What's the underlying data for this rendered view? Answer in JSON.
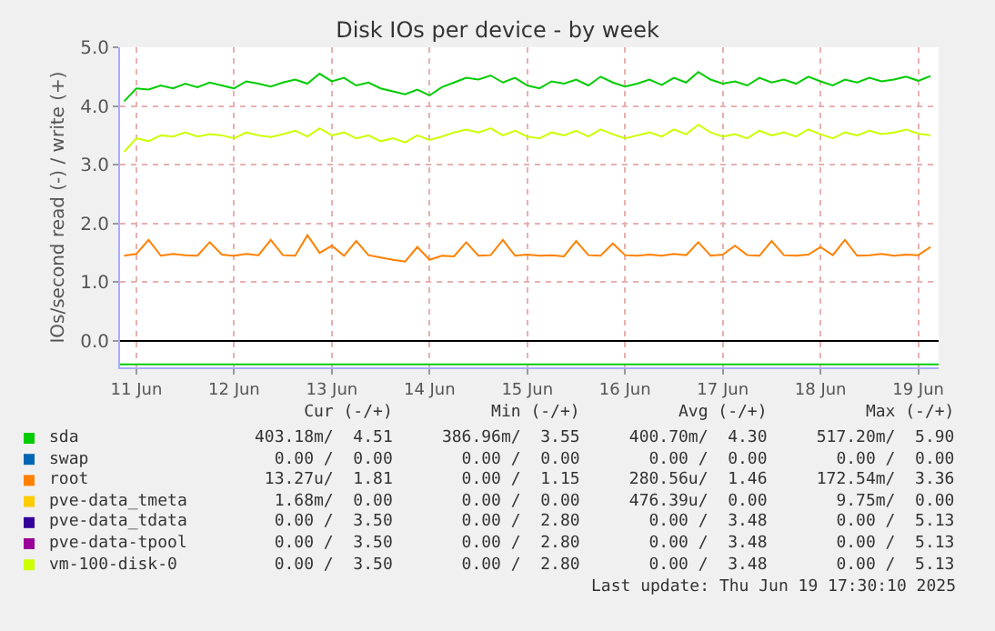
{
  "chart_data": {
    "type": "line",
    "title": "Disk IOs per device - by week",
    "ylabel": "IOs/second read (-) / write (+)",
    "x": [
      "2025-06-11T09:00",
      "2025-06-11T12:00",
      "2025-06-11T15:00",
      "2025-06-11T18:00",
      "2025-06-11T21:00",
      "2025-06-12T00:00",
      "2025-06-12T03:00",
      "2025-06-12T06:00",
      "2025-06-12T09:00",
      "2025-06-12T12:00",
      "2025-06-12T15:00",
      "2025-06-12T18:00",
      "2025-06-12T21:00",
      "2025-06-13T00:00",
      "2025-06-13T03:00",
      "2025-06-13T06:00",
      "2025-06-13T09:00",
      "2025-06-13T12:00",
      "2025-06-13T15:00",
      "2025-06-13T18:00",
      "2025-06-13T21:00",
      "2025-06-14T00:00",
      "2025-06-14T03:00",
      "2025-06-14T06:00",
      "2025-06-14T09:00",
      "2025-06-14T12:00",
      "2025-06-14T15:00",
      "2025-06-14T18:00",
      "2025-06-14T21:00",
      "2025-06-15T00:00",
      "2025-06-15T03:00",
      "2025-06-15T06:00",
      "2025-06-15T09:00",
      "2025-06-15T12:00",
      "2025-06-15T15:00",
      "2025-06-15T18:00",
      "2025-06-15T21:00",
      "2025-06-16T00:00",
      "2025-06-16T03:00",
      "2025-06-16T06:00",
      "2025-06-16T09:00",
      "2025-06-16T12:00",
      "2025-06-16T15:00",
      "2025-06-16T18:00",
      "2025-06-16T21:00",
      "2025-06-17T00:00",
      "2025-06-17T03:00",
      "2025-06-17T06:00",
      "2025-06-17T09:00",
      "2025-06-17T12:00",
      "2025-06-17T15:00",
      "2025-06-17T18:00",
      "2025-06-17T21:00",
      "2025-06-18T00:00",
      "2025-06-18T03:00",
      "2025-06-18T06:00",
      "2025-06-18T09:00",
      "2025-06-18T12:00",
      "2025-06-18T15:00",
      "2025-06-18T18:00",
      "2025-06-18T21:00",
      "2025-06-19T00:00",
      "2025-06-19T03:00",
      "2025-06-19T06:00",
      "2025-06-19T09:00",
      "2025-06-19T12:00",
      "2025-06-19T15:00"
    ],
    "series": [
      {
        "name": "sda",
        "color": "#00cc00",
        "values": [
          4.08,
          4.3,
          4.28,
          4.35,
          4.3,
          4.38,
          4.32,
          4.4,
          4.35,
          4.3,
          4.42,
          4.38,
          4.33,
          4.4,
          4.45,
          4.38,
          4.55,
          4.42,
          4.48,
          4.35,
          4.4,
          4.3,
          4.25,
          4.2,
          4.28,
          4.18,
          4.32,
          4.4,
          4.48,
          4.45,
          4.52,
          4.4,
          4.48,
          4.35,
          4.3,
          4.42,
          4.38,
          4.45,
          4.35,
          4.5,
          4.4,
          4.33,
          4.38,
          4.45,
          4.36,
          4.48,
          4.4,
          4.58,
          4.45,
          4.38,
          4.42,
          4.35,
          4.48,
          4.4,
          4.45,
          4.38,
          4.5,
          4.42,
          4.35,
          4.45,
          4.4,
          4.48,
          4.42,
          4.45,
          4.5,
          4.43,
          4.51
        ]
      },
      {
        "name": "swap",
        "color": "#0066b3",
        "values": [
          null,
          null,
          null,
          null,
          null,
          null,
          null,
          null,
          null,
          null,
          null,
          null,
          null,
          null,
          null,
          null,
          null,
          null,
          null,
          null,
          null,
          null,
          null,
          null,
          null,
          null,
          null,
          null,
          null,
          null,
          null,
          null,
          null,
          null,
          null,
          null,
          null,
          null,
          null,
          null,
          null,
          null,
          null,
          null,
          null,
          null,
          null,
          null,
          null,
          null,
          null,
          null,
          null,
          null,
          null,
          null,
          null,
          null,
          null,
          null,
          null,
          null,
          null,
          null,
          null,
          null,
          null
        ]
      },
      {
        "name": "root",
        "color": "#ff8000",
        "values": [
          1.45,
          1.48,
          1.72,
          1.45,
          1.48,
          1.46,
          1.45,
          1.68,
          1.47,
          1.45,
          1.48,
          1.46,
          1.72,
          1.46,
          1.45,
          1.8,
          1.5,
          1.62,
          1.45,
          1.7,
          1.46,
          1.42,
          1.38,
          1.35,
          1.6,
          1.38,
          1.45,
          1.44,
          1.68,
          1.45,
          1.46,
          1.72,
          1.45,
          1.47,
          1.45,
          1.46,
          1.44,
          1.7,
          1.46,
          1.45,
          1.66,
          1.46,
          1.45,
          1.47,
          1.45,
          1.48,
          1.46,
          1.68,
          1.45,
          1.47,
          1.62,
          1.46,
          1.45,
          1.7,
          1.46,
          1.45,
          1.47,
          1.6,
          1.46,
          1.72,
          1.45,
          1.46,
          1.48,
          1.45,
          1.47,
          1.46,
          1.6
        ]
      },
      {
        "name": "pve-data_tmeta",
        "color": "#ffcc00",
        "values": [
          null,
          null,
          null,
          null,
          null,
          null,
          null,
          null,
          null,
          null,
          null,
          null,
          null,
          null,
          null,
          null,
          null,
          null,
          null,
          null,
          null,
          null,
          null,
          null,
          null,
          null,
          null,
          null,
          null,
          null,
          null,
          null,
          null,
          null,
          null,
          null,
          null,
          null,
          null,
          null,
          null,
          null,
          null,
          null,
          null,
          null,
          null,
          null,
          null,
          null,
          null,
          null,
          null,
          null,
          null,
          null,
          null,
          null,
          null,
          null,
          null,
          null,
          null,
          null,
          null,
          null,
          null
        ]
      },
      {
        "name": "pve-data_tdata",
        "color": "#330099",
        "values": [
          null,
          null,
          null,
          null,
          null,
          null,
          null,
          null,
          null,
          null,
          null,
          null,
          null,
          null,
          null,
          null,
          null,
          null,
          null,
          null,
          null,
          null,
          null,
          null,
          null,
          null,
          null,
          null,
          null,
          null,
          null,
          null,
          null,
          null,
          null,
          null,
          null,
          null,
          null,
          null,
          null,
          null,
          null,
          null,
          null,
          null,
          null,
          null,
          null,
          null,
          null,
          null,
          null,
          null,
          null,
          null,
          null,
          null,
          null,
          null,
          null,
          null,
          null,
          null,
          null,
          null,
          null
        ]
      },
      {
        "name": "pve-data-tpool",
        "color": "#990099",
        "values": [
          null,
          null,
          null,
          null,
          null,
          null,
          null,
          null,
          null,
          null,
          null,
          null,
          null,
          null,
          null,
          null,
          null,
          null,
          null,
          null,
          null,
          null,
          null,
          null,
          null,
          null,
          null,
          null,
          null,
          null,
          null,
          null,
          null,
          null,
          null,
          null,
          null,
          null,
          null,
          null,
          null,
          null,
          null,
          null,
          null,
          null,
          null,
          null,
          null,
          null,
          null,
          null,
          null,
          null,
          null,
          null,
          null,
          null,
          null,
          null,
          null,
          null,
          null,
          null,
          null,
          null,
          null
        ]
      },
      {
        "name": "vm-100-disk-0",
        "color": "#ccff00",
        "values": [
          3.22,
          3.45,
          3.4,
          3.5,
          3.48,
          3.55,
          3.48,
          3.52,
          3.5,
          3.45,
          3.55,
          3.5,
          3.47,
          3.52,
          3.58,
          3.48,
          3.62,
          3.5,
          3.55,
          3.45,
          3.5,
          3.4,
          3.45,
          3.38,
          3.5,
          3.42,
          3.48,
          3.55,
          3.6,
          3.55,
          3.62,
          3.5,
          3.58,
          3.48,
          3.45,
          3.55,
          3.5,
          3.58,
          3.48,
          3.6,
          3.52,
          3.45,
          3.5,
          3.55,
          3.48,
          3.6,
          3.52,
          3.68,
          3.55,
          3.48,
          3.52,
          3.45,
          3.58,
          3.5,
          3.55,
          3.48,
          3.6,
          3.52,
          3.45,
          3.55,
          3.5,
          3.58,
          3.52,
          3.55,
          3.6,
          3.53,
          3.5
        ]
      },
      {
        "color": "#00cc00",
        "x": [
          "2025-06-11T08:00",
          "2025-06-19T17:00"
        ],
        "values": [
          -0.4,
          -0.4
        ]
      }
    ],
    "xlim": [
      "2025-06-11T08:00",
      "2025-06-19T17:00"
    ],
    "xticks": [
      {
        "value": "2025-06-11T12:00",
        "label": "11 Jun"
      },
      {
        "value": "2025-06-12T12:00",
        "label": "12 Jun"
      },
      {
        "value": "2025-06-13T12:00",
        "label": "13 Jun"
      },
      {
        "value": "2025-06-14T12:00",
        "label": "14 Jun"
      },
      {
        "value": "2025-06-15T12:00",
        "label": "15 Jun"
      },
      {
        "value": "2025-06-16T12:00",
        "label": "16 Jun"
      },
      {
        "value": "2025-06-17T12:00",
        "label": "17 Jun"
      },
      {
        "value": "2025-06-18T12:00",
        "label": "18 Jun"
      },
      {
        "value": "2025-06-19T12:00",
        "label": "19 Jun"
      }
    ],
    "ylim": [
      -0.45,
      5.0
    ],
    "yticks": [
      {
        "value": 0,
        "label": "0.0"
      },
      {
        "value": 1,
        "label": "1.0"
      },
      {
        "value": 2,
        "label": "2.0"
      },
      {
        "value": 3,
        "label": "3.0"
      },
      {
        "value": 4,
        "label": "4.0"
      },
      {
        "value": 5,
        "label": "5.0"
      }
    ],
    "ref_lines": [
      {
        "axis": "y",
        "value": 0,
        "color": "#000000"
      }
    ],
    "grid": true,
    "legend": "bottom",
    "marker": "none",
    "line_style": "solid",
    "annotations": [
      "     Cur (-/+)          Min (-/+)          Avg (-/+)          Max (-/+)",
      "403.18m/  4.51     386.96m/  3.55     400.70m/  4.30     517.20m/  5.90",
      "  0.00 /  0.00       0.00 /  0.00       0.00 /  0.00       0.00 /  0.00",
      " 13.27u/  1.81       0.00 /  1.15     280.56u/  1.46     172.54m/  3.36",
      "  1.68m/  0.00       0.00 /  0.00     476.39u/  0.00       9.75m/  0.00",
      "  0.00 /  3.50       0.00 /  2.80       0.00 /  3.48       0.00 /  5.13",
      "  0.00 /  3.50       0.00 /  2.80       0.00 /  3.48       0.00 /  5.13",
      "  0.00 /  3.50       0.00 /  2.80       0.00 /  3.48       0.00 /  5.13",
      "Last update: Thu Jun 19 17:30:10 2025"
    ]
  }
}
